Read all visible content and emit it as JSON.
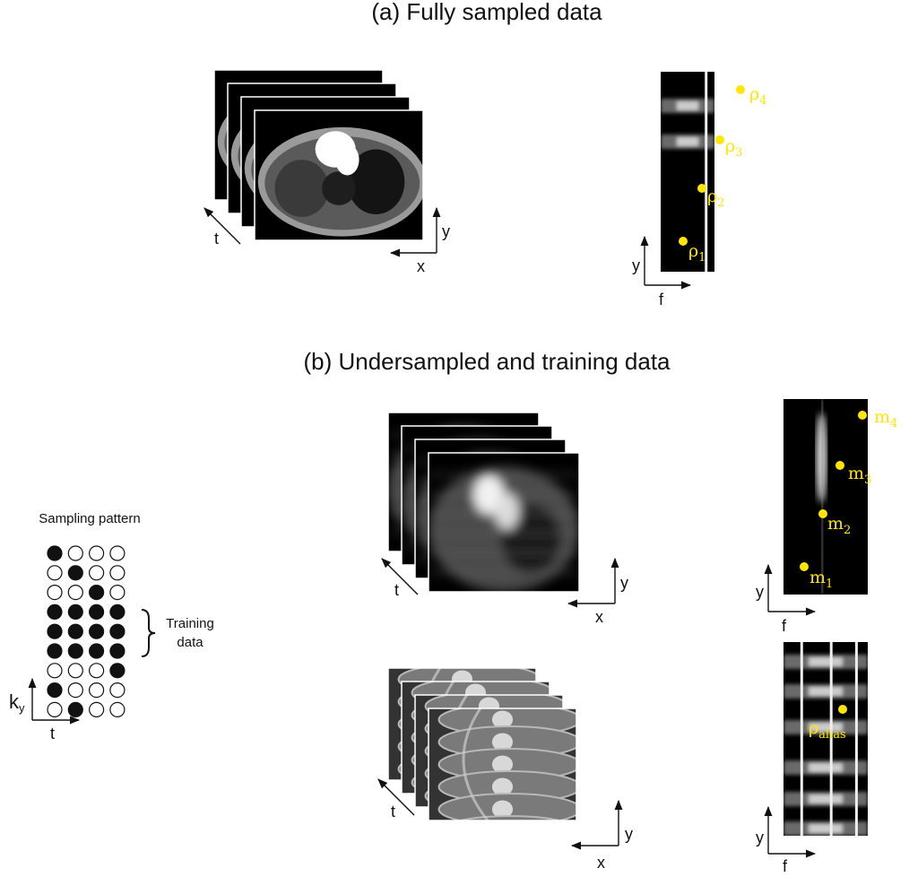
{
  "panel_a": {
    "title": "(a)  Fully sampled data",
    "image_axes": {
      "t": "t",
      "y": "y",
      "x": "x"
    },
    "xf_axes": {
      "y": "y",
      "f": "f"
    },
    "points": [
      {
        "symbol": "ρ",
        "subscript": "4"
      },
      {
        "symbol": "ρ",
        "subscript": "3"
      },
      {
        "symbol": "ρ",
        "subscript": "2"
      },
      {
        "symbol": "ρ",
        "subscript": "1"
      }
    ]
  },
  "panel_b": {
    "title": "(b)  Undersampled and training data",
    "sampling_pattern": {
      "title": "Sampling pattern",
      "bracket_label": [
        "Training",
        "data"
      ],
      "axis_y": {
        "symbol": "k",
        "subscript": "y"
      },
      "axis_x": "t"
    },
    "undersampled": {
      "image_axes": {
        "t": "t",
        "y": "y",
        "x": "x"
      },
      "xf_axes": {
        "y": "y",
        "f": "f"
      },
      "points": [
        {
          "symbol": "m",
          "subscript": "4"
        },
        {
          "symbol": "m",
          "subscript": "3"
        },
        {
          "symbol": "m",
          "subscript": "2"
        },
        {
          "symbol": "m",
          "subscript": "1"
        }
      ]
    },
    "training": {
      "image_axes": {
        "t": "t",
        "y": "y",
        "x": "x"
      },
      "xf_axes": {
        "y": "y",
        "f": "f"
      },
      "point": {
        "symbol": "ρ",
        "subscript": "alias"
      }
    }
  }
}
